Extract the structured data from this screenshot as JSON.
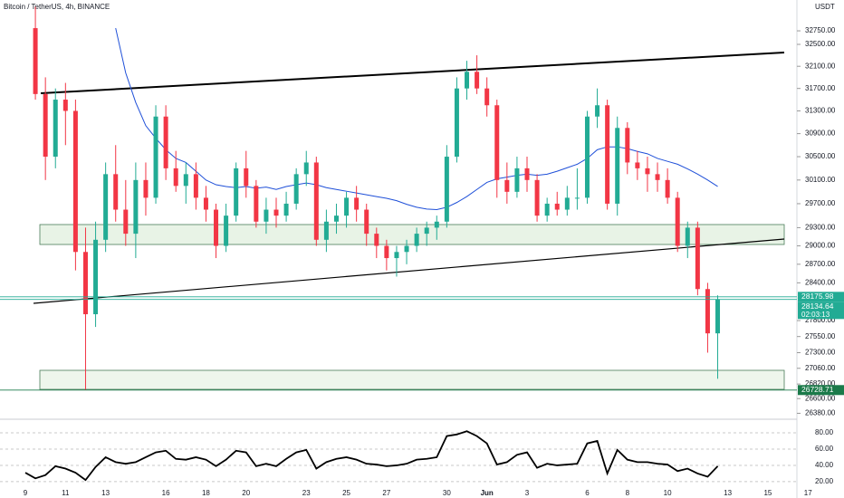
{
  "chart_data": [
    {
      "type": "candlestick",
      "title": "Bitcoin / TetherUS, 4h, BINANCE",
      "unit": "USDT",
      "categories": [
        "9",
        null,
        null,
        null,
        "11",
        null,
        null,
        null,
        "13",
        null,
        null,
        null,
        null,
        null,
        "16",
        null,
        null,
        null,
        "18",
        null,
        null,
        null,
        "20",
        null,
        null,
        null,
        null,
        null,
        "23",
        null,
        null,
        null,
        "25",
        null,
        null,
        null,
        "27",
        null,
        null,
        null,
        null,
        null,
        "30",
        null,
        null,
        null,
        "Jun",
        null,
        null,
        null,
        "3",
        null,
        null,
        null,
        null,
        null,
        "6",
        null,
        null,
        null,
        "8",
        null,
        null,
        null,
        "10",
        null,
        null,
        null,
        null,
        null,
        "13",
        null,
        null,
        null,
        "15",
        null,
        null,
        null,
        "17"
      ],
      "open": [
        null,
        32800,
        31600,
        30500,
        31500,
        31300,
        28900,
        27900,
        29100,
        30200,
        29600,
        29200,
        30100,
        29800,
        31200,
        30300,
        30000,
        30200,
        29800,
        29600,
        29000,
        29500,
        30300,
        30000,
        29400,
        29600,
        29500,
        29700,
        30200,
        30400,
        29100,
        29400,
        29500,
        29800,
        29600,
        29200,
        29000,
        28800,
        28900,
        29000,
        29200,
        29300,
        29400,
        30500,
        31700,
        32000,
        31700,
        31400,
        30100,
        29900,
        30300,
        30100,
        29500,
        29700,
        29600,
        29800,
        29800,
        31200,
        31400,
        29700,
        31000,
        30400,
        30300,
        30200,
        30100,
        29800,
        29000,
        29300,
        28300,
        27600,
        null,
        null,
        null,
        null,
        null,
        null,
        null,
        null,
        null
      ],
      "high": [
        null,
        33200,
        31900,
        31700,
        31800,
        31500,
        29300,
        29400,
        30400,
        30700,
        30100,
        30400,
        30400,
        31400,
        31400,
        30600,
        30400,
        30400,
        30000,
        29700,
        29700,
        30400,
        30600,
        30100,
        29800,
        29800,
        29900,
        30300,
        30600,
        30500,
        29600,
        29700,
        29900,
        30000,
        29700,
        29300,
        29100,
        29000,
        29100,
        29300,
        29400,
        29500,
        30700,
        31900,
        32200,
        32300,
        31900,
        31500,
        30400,
        30500,
        30500,
        30200,
        29800,
        29900,
        30000,
        30300,
        31300,
        31700,
        31500,
        31200,
        31100,
        30600,
        30500,
        30400,
        30300,
        29900,
        29400,
        29400,
        28400,
        28200,
        null,
        null,
        null,
        null,
        null,
        null,
        null,
        null,
        null
      ],
      "low": [
        null,
        31500,
        30100,
        30300,
        30700,
        28600,
        26729,
        27700,
        28900,
        29400,
        29000,
        28800,
        29500,
        29700,
        30100,
        29900,
        29700,
        29600,
        29400,
        28800,
        28900,
        29400,
        29800,
        29300,
        29200,
        29300,
        29400,
        29600,
        30000,
        29000,
        28900,
        29200,
        29300,
        29400,
        29000,
        28800,
        28600,
        28500,
        28700,
        28900,
        29000,
        29100,
        29300,
        30400,
        31500,
        31600,
        31200,
        29800,
        29700,
        29800,
        29900,
        29400,
        29400,
        29500,
        29500,
        29600,
        29700,
        31000,
        29600,
        29500,
        30200,
        30100,
        29900,
        29900,
        29700,
        28900,
        28800,
        28200,
        27300,
        26900,
        null,
        null,
        null,
        null,
        null,
        null,
        null,
        null,
        null
      ],
      "close": [
        null,
        31600,
        30500,
        31500,
        31300,
        28900,
        27900,
        29100,
        30200,
        29600,
        29200,
        30100,
        29800,
        31200,
        30300,
        30000,
        30200,
        29800,
        29600,
        29000,
        29500,
        30300,
        30000,
        29400,
        29600,
        29500,
        29700,
        30200,
        30400,
        29100,
        29400,
        29500,
        29800,
        29600,
        29200,
        29000,
        28800,
        28900,
        29000,
        29200,
        29300,
        29400,
        30500,
        31700,
        32000,
        31700,
        31400,
        30100,
        29900,
        30300,
        30100,
        29500,
        29700,
        29600,
        29800,
        29800,
        31200,
        31400,
        29700,
        31000,
        30400,
        30300,
        30200,
        30100,
        29800,
        29000,
        29300,
        28300,
        27600,
        28135,
        null,
        null,
        null,
        null,
        null,
        null,
        null,
        null,
        null
      ],
      "up_color": "#22ab94",
      "down_color": "#f23645",
      "overlays": [
        {
          "color": "#1e4fd8",
          "values": [
            null,
            null,
            null,
            null,
            null,
            null,
            null,
            null,
            null,
            32800,
            31980,
            31450,
            31040,
            30820,
            30620,
            30470,
            30400,
            30250,
            30100,
            30020,
            29990,
            29970,
            29990,
            29960,
            29980,
            29940,
            29990,
            30020,
            30050,
            30020,
            29970,
            29940,
            29910,
            29880,
            29850,
            29820,
            29790,
            29750,
            29690,
            29640,
            29610,
            29600,
            29640,
            29720,
            29820,
            29940,
            30060,
            30120,
            30150,
            30180,
            30200,
            30180,
            30200,
            30250,
            30310,
            30370,
            30470,
            30620,
            30670,
            30670,
            30640,
            30590,
            30550,
            30470,
            30420,
            30370,
            30290,
            30200,
            30100,
            29990,
            null,
            null,
            null,
            null,
            null,
            null,
            null,
            null,
            null
          ]
        }
      ],
      "log": true,
      "ylim": [
        26305,
        33326
      ],
      "yticks": [
        {
          "value": 32750,
          "label": "32750.00"
        },
        {
          "value": 32500,
          "label": "32500.00"
        },
        {
          "value": 32100,
          "label": "32100.00"
        },
        {
          "value": 31700,
          "label": "31700.00"
        },
        {
          "value": 31300,
          "label": "31300.00"
        },
        {
          "value": 30900,
          "label": "30900.00"
        },
        {
          "value": 30500,
          "label": "30500.00"
        },
        {
          "value": 30100,
          "label": "30100.00"
        },
        {
          "value": 29700,
          "label": "29700.00"
        },
        {
          "value": 29300,
          "label": "29300.00"
        },
        {
          "value": 29000,
          "label": "29000.00"
        },
        {
          "value": 28700,
          "label": "28700.00"
        },
        {
          "value": 28400,
          "label": "28400.00"
        },
        {
          "value": 27800,
          "label": "27800.00"
        },
        {
          "value": 27550,
          "label": "27550.00"
        },
        {
          "value": 27300,
          "label": "27300.00"
        },
        {
          "value": 27060,
          "label": "27060.00"
        },
        {
          "value": 26820,
          "label": "26820.00"
        },
        {
          "value": 26600,
          "label": "26600.00"
        },
        {
          "value": 26380,
          "label": "26380.00"
        }
      ],
      "price_tags": [
        {
          "value": 28175.98,
          "label": "28175.98",
          "color": "#22ab94"
        },
        {
          "value": 28134.64,
          "label": "28134.64",
          "color": "#22ab94"
        },
        {
          "value": 26728.71,
          "label": "26728.71",
          "color": "#1b7a4a"
        }
      ],
      "countdown": "02:03:13"
    },
    {
      "type": "line",
      "color": "#000000",
      "values": [
        31,
        24,
        28,
        39,
        36,
        31,
        22,
        38,
        50,
        44,
        42,
        44,
        50,
        56,
        58,
        48,
        47,
        50,
        47,
        39,
        47,
        58,
        56,
        39,
        42,
        39,
        48,
        56,
        59,
        36,
        44,
        48,
        50,
        47,
        42,
        41,
        39,
        40,
        42,
        47,
        48,
        50,
        76,
        78,
        82,
        76,
        67,
        41,
        44,
        53,
        56,
        37,
        42,
        40,
        41,
        42,
        67,
        70,
        30,
        59,
        47,
        44,
        44,
        42,
        41,
        33,
        36,
        30,
        26,
        39,
        null,
        null,
        null,
        null,
        null,
        null,
        null,
        null,
        null
      ],
      "ylim": [
        11,
        94.5
      ],
      "yticks": [
        {
          "value": 80,
          "label": "80.00"
        },
        {
          "value": 60,
          "label": "60.00"
        },
        {
          "value": 40,
          "label": "40.00"
        },
        {
          "value": 20,
          "label": "20.00"
        }
      ]
    }
  ]
}
